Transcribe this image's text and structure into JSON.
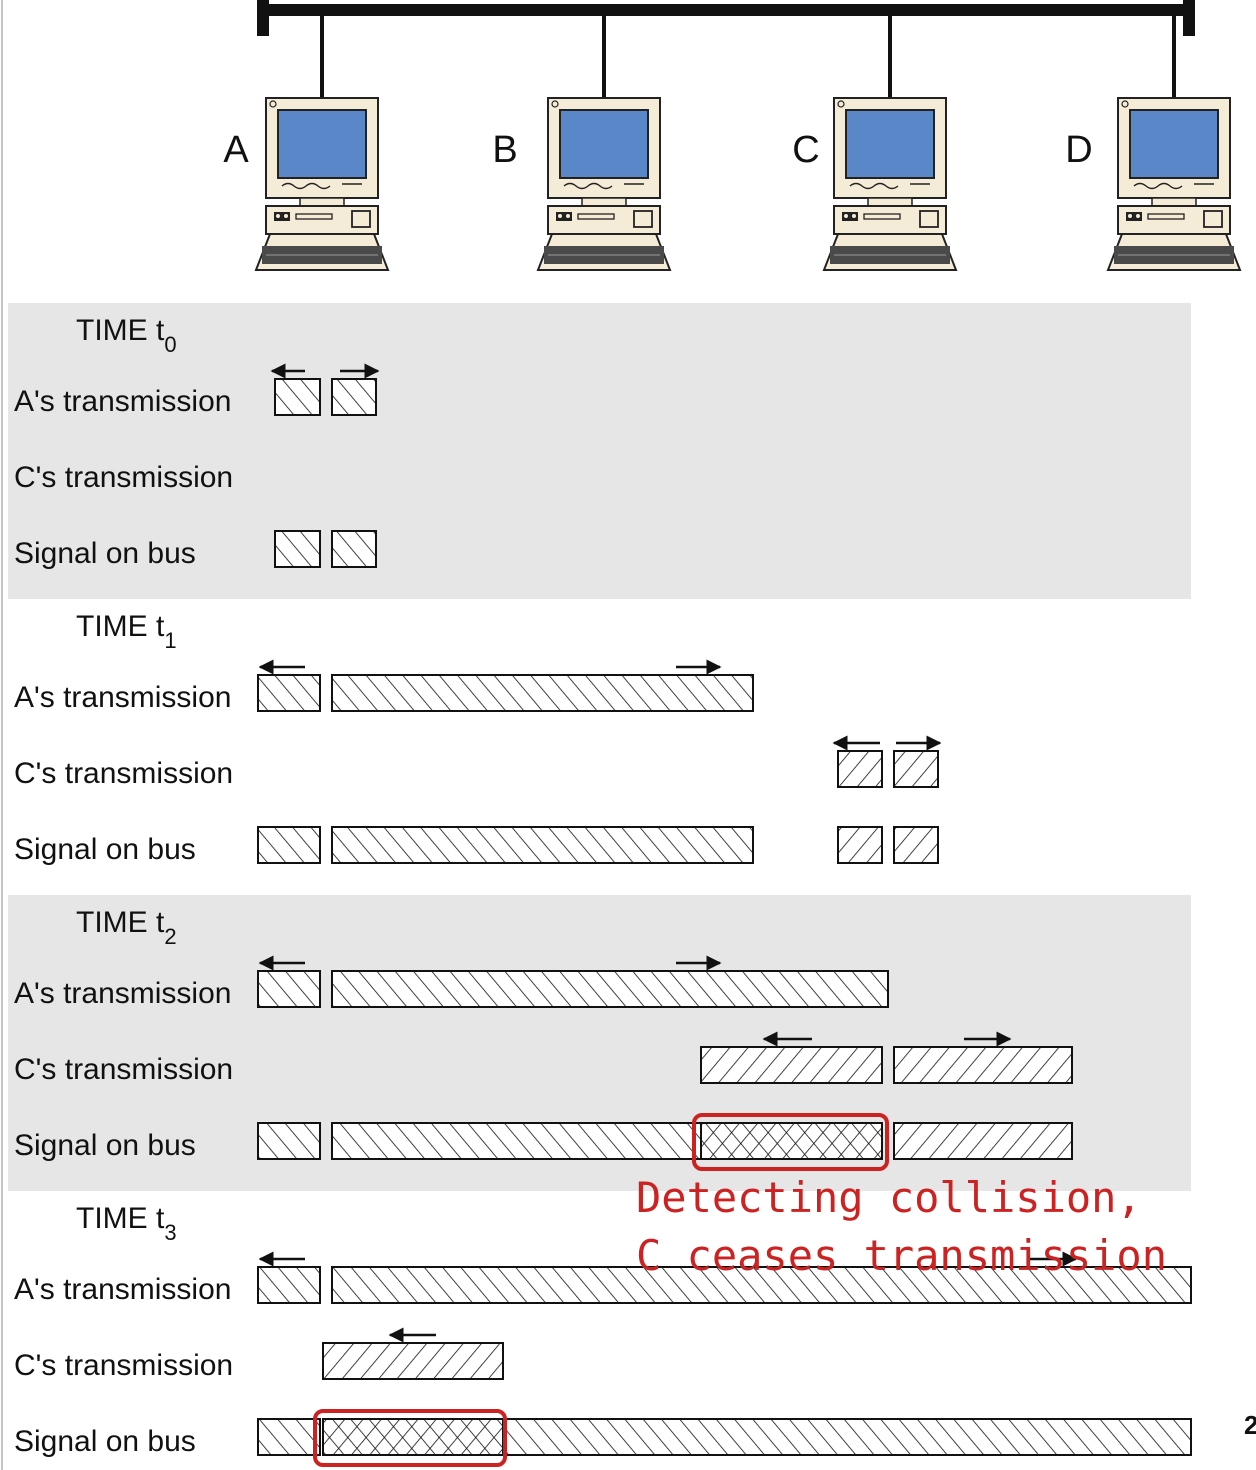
{
  "stations": [
    "A",
    "B",
    "C",
    "D"
  ],
  "row_labels": [
    "A's transmission",
    "C's transmission",
    "Signal on bus"
  ],
  "time_label": "TIME t",
  "panels": [
    {
      "subscript": "0"
    },
    {
      "subscript": "1"
    },
    {
      "subscript": "2"
    },
    {
      "subscript": "3"
    }
  ],
  "annotation": {
    "line1": "Detecting collision,",
    "line2": "C ceases transmission",
    "color": "#cc2222"
  },
  "edge_text": "2",
  "colors": {
    "panel_shade": "#e6e6e6",
    "bus": "#111111",
    "screen": "#5a87c8",
    "casing": "#f4ecd6"
  }
}
